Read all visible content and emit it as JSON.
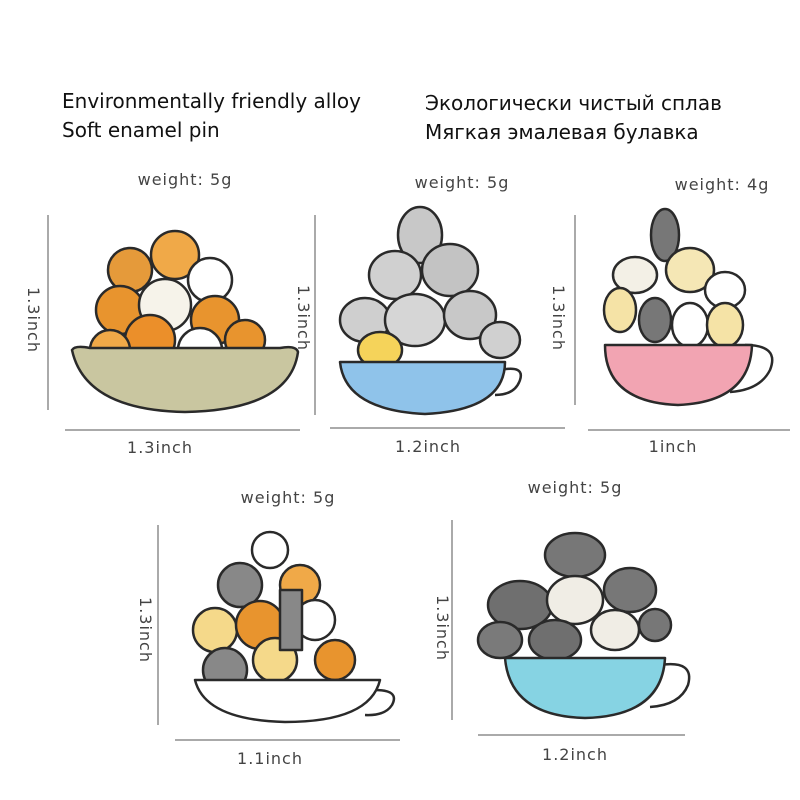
{
  "header": {
    "english": [
      "Environmentally friendly alloy",
      "Soft enamel pin"
    ],
    "russian": [
      "Экологически чистый сплав",
      "Мягкая эмалевая булавка"
    ]
  },
  "pins": [
    {
      "weight": "weight: 5g",
      "height": "1.3inch",
      "width": "1.3inch"
    },
    {
      "weight": "weight: 5g",
      "height": "1.3inch",
      "width": "1.2inch"
    },
    {
      "weight": "weight: 4g",
      "height": "1.3inch",
      "width": "1inch"
    },
    {
      "weight": "weight: 5g",
      "height": "1.3inch",
      "width": "1.1inch"
    },
    {
      "weight": "weight: 5g",
      "height": "1.3inch",
      "width": "1.2inch"
    }
  ]
}
